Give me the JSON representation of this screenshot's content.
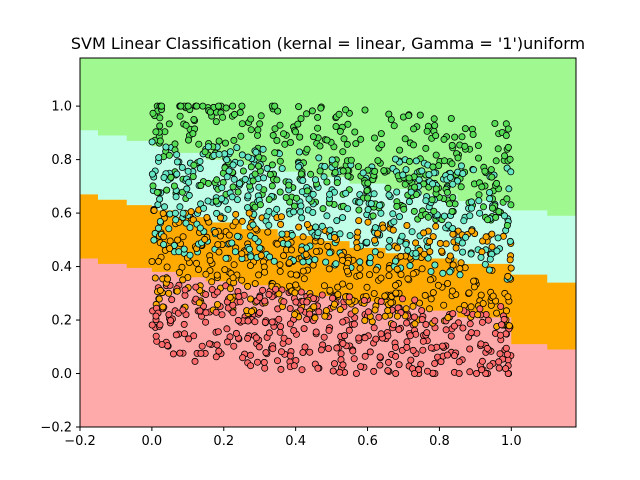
{
  "chart_data": {
    "type": "scatter",
    "title": "SVM Linear Classification (kernal = linear, Gamma = '1')uniform",
    "xlabel": "",
    "ylabel": "",
    "xlim": [
      -0.2,
      1.18
    ],
    "ylim": [
      -0.2,
      1.18
    ],
    "xticks": [
      -0.2,
      0.0,
      0.2,
      0.4,
      0.6,
      0.8,
      1.0
    ],
    "xtick_labels": [
      "−0.2",
      "0.0",
      "0.2",
      "0.4",
      "0.6",
      "0.8",
      "1.0"
    ],
    "yticks": [
      -0.2,
      0.0,
      0.2,
      0.4,
      0.6,
      0.8,
      1.0
    ],
    "ytick_labels": [
      "−0.2",
      "0.0",
      "0.2",
      "0.4",
      "0.6",
      "0.8",
      "1.0"
    ],
    "grid": false,
    "points_per_class": 420,
    "points_range": {
      "x": [
        0.0,
        1.0
      ],
      "y": [
        0.0,
        1.0
      ]
    },
    "region_colors": [
      "#ffaaaa",
      "#ffaa00",
      "#c2ffe8",
      "#a0f890"
    ],
    "point_colors": [
      "#ff6a6a",
      "#ffaa00",
      "#66e8c6",
      "#55dd55"
    ],
    "point_edge_color": "#000000",
    "class_band_y": [
      [
        0.0,
        0.3
      ],
      [
        0.2,
        0.58
      ],
      [
        0.4,
        0.82
      ],
      [
        0.6,
        1.0
      ]
    ],
    "boundaries": [
      {
        "x": [
          -0.2,
          -0.15,
          -0.15,
          -0.07,
          -0.07,
          0.0,
          0.0,
          0.07,
          0.07,
          0.15,
          0.15,
          0.25,
          0.25,
          0.35,
          0.35,
          0.45,
          0.45,
          0.55,
          0.55,
          0.65,
          0.65,
          0.75,
          0.75,
          0.85,
          0.85,
          1.0,
          1.0,
          1.1,
          1.1,
          1.18
        ],
        "y": [
          0.43,
          0.43,
          0.41,
          0.41,
          0.395,
          0.395,
          0.38,
          0.38,
          0.36,
          0.36,
          0.345,
          0.345,
          0.33,
          0.33,
          0.31,
          0.31,
          0.29,
          0.29,
          0.27,
          0.27,
          0.255,
          0.255,
          0.235,
          0.235,
          0.21,
          0.21,
          0.11,
          0.11,
          0.09,
          0.09
        ]
      },
      {
        "x": [
          -0.2,
          -0.15,
          -0.15,
          -0.07,
          -0.07,
          0.0,
          0.0,
          0.07,
          0.07,
          0.15,
          0.15,
          0.25,
          0.25,
          0.35,
          0.35,
          0.45,
          0.45,
          0.55,
          0.55,
          0.65,
          0.65,
          0.75,
          0.75,
          0.85,
          0.85,
          1.0,
          1.0,
          1.1,
          1.1,
          1.18
        ],
        "y": [
          0.67,
          0.67,
          0.65,
          0.65,
          0.63,
          0.63,
          0.61,
          0.61,
          0.585,
          0.585,
          0.565,
          0.565,
          0.54,
          0.54,
          0.515,
          0.515,
          0.495,
          0.495,
          0.47,
          0.47,
          0.45,
          0.45,
          0.43,
          0.43,
          0.41,
          0.41,
          0.37,
          0.37,
          0.34,
          0.34
        ]
      },
      {
        "x": [
          -0.2,
          -0.15,
          -0.15,
          -0.07,
          -0.07,
          0.0,
          0.0,
          0.07,
          0.07,
          0.15,
          0.15,
          0.25,
          0.25,
          0.35,
          0.35,
          0.45,
          0.45,
          0.55,
          0.55,
          0.65,
          0.65,
          0.75,
          0.75,
          0.85,
          0.85,
          1.0,
          1.0,
          1.1,
          1.1,
          1.18
        ],
        "y": [
          0.91,
          0.91,
          0.89,
          0.89,
          0.87,
          0.87,
          0.85,
          0.85,
          0.825,
          0.825,
          0.8,
          0.8,
          0.78,
          0.78,
          0.755,
          0.755,
          0.735,
          0.735,
          0.71,
          0.71,
          0.69,
          0.69,
          0.67,
          0.67,
          0.645,
          0.645,
          0.61,
          0.61,
          0.59,
          0.59
        ]
      }
    ]
  }
}
